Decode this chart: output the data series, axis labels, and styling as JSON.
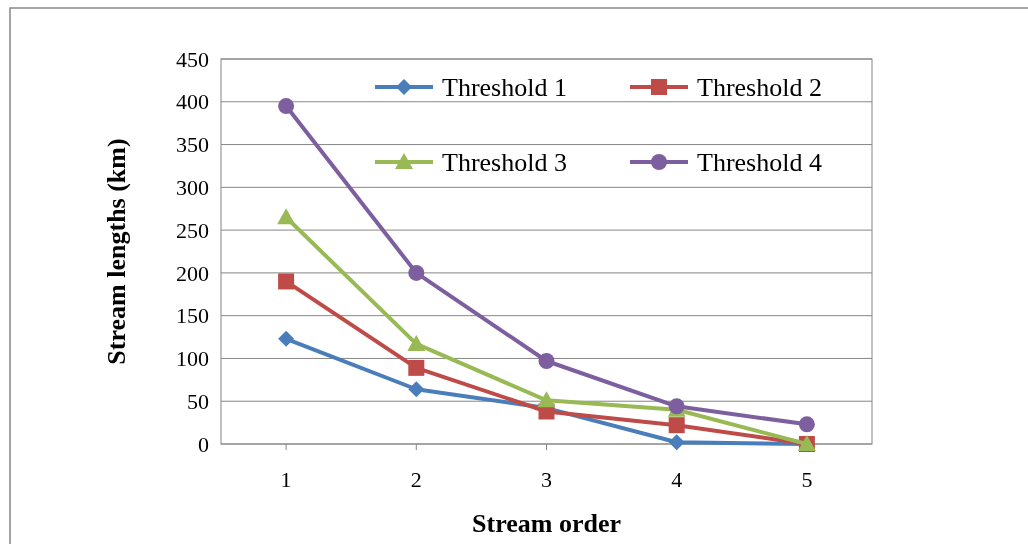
{
  "chart_data": {
    "type": "line",
    "xlabel": "Stream order",
    "ylabel": "Stream lengths (km)",
    "categories": [
      "1",
      "2",
      "3",
      "4",
      "5"
    ],
    "series": [
      {
        "name": "Threshold 1",
        "color": "#4a7ebb",
        "marker": "diamond",
        "values": [
          123,
          64,
          42,
          2,
          0
        ]
      },
      {
        "name": "Threshold 2",
        "color": "#be4b48",
        "marker": "square",
        "values": [
          190,
          89,
          38,
          22,
          0
        ]
      },
      {
        "name": "Threshold 3",
        "color": "#98b954",
        "marker": "triangle",
        "values": [
          265,
          117,
          51,
          40,
          0
        ]
      },
      {
        "name": "Threshold 4",
        "color": "#7d5fa0",
        "marker": "circle",
        "values": [
          395,
          200,
          97,
          44,
          23
        ]
      }
    ],
    "ylim": [
      0,
      450
    ],
    "yticks": [
      0,
      50,
      100,
      150,
      200,
      250,
      300,
      350,
      400,
      450
    ],
    "grid": "y",
    "legend": "top right",
    "line_style": "solid"
  }
}
